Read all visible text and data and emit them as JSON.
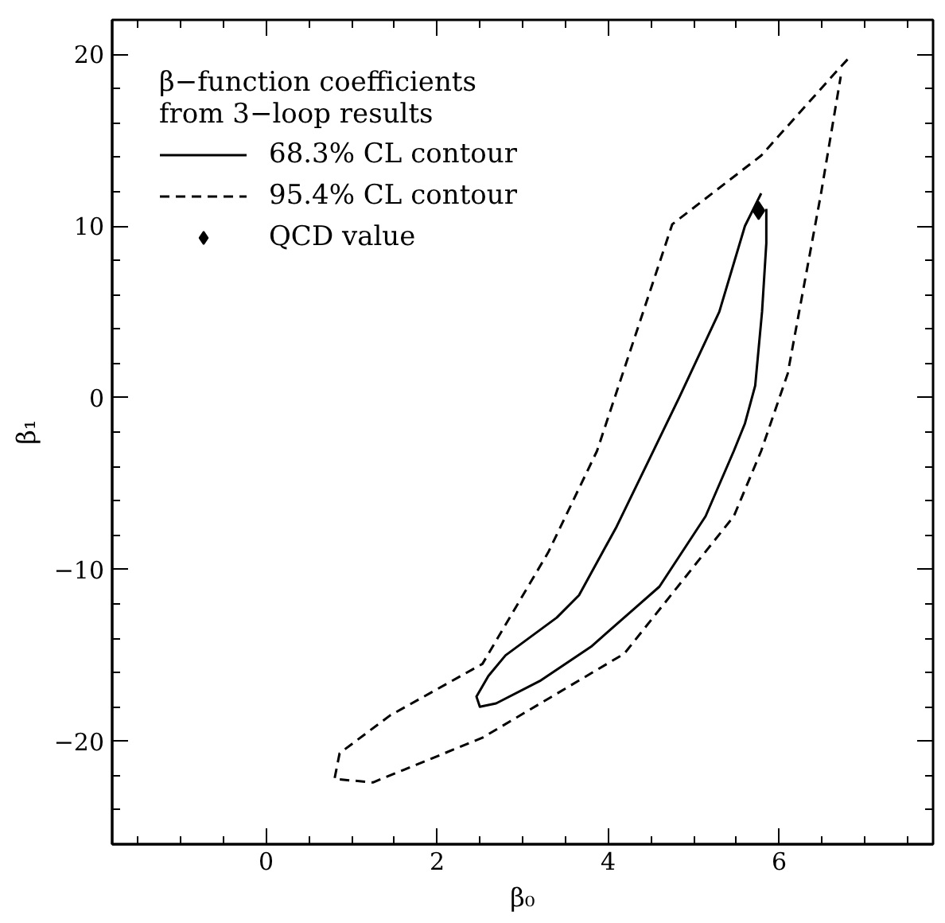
{
  "chart_data": {
    "type": "line",
    "xlabel": "β₀",
    "ylabel": "β₁",
    "legend_title": "β−function coefficients\nfrom 3−loop results",
    "legend": "top left",
    "grid": false,
    "xlim": [
      -1.8,
      7.8
    ],
    "ylim": [
      -26,
      22
    ],
    "xticks": [
      0,
      2,
      4,
      6
    ],
    "yticks": [
      -20,
      -10,
      0,
      10,
      20
    ],
    "series": [
      {
        "name": "68.3% CL contour",
        "type": "line",
        "line_style": "solid",
        "color": "#000000",
        "x": [
          5.79,
          5.6,
          5.3,
          4.83,
          4.5,
          4.1,
          3.66,
          3.4,
          2.8,
          2.6,
          2.46,
          2.5,
          2.69,
          3.2,
          3.8,
          4.6,
          5.14,
          5.47,
          5.6,
          5.72,
          5.8,
          5.85,
          5.85
        ],
        "values": [
          11.9,
          10,
          5,
          0,
          -3.4,
          -7.5,
          -11.5,
          -12.8,
          -15,
          -16.2,
          -17.4,
          -18,
          -17.8,
          -16.5,
          -14.5,
          -11,
          -6.9,
          -3.1,
          -1.5,
          0.7,
          5,
          9,
          11
        ]
      },
      {
        "name": "95.4% CL contour",
        "type": "line",
        "line_style": "dashed",
        "color": "#000000",
        "x": [
          6.8,
          6.67,
          5.79,
          4.75,
          3.87,
          3.3,
          2.53,
          1.45,
          0.86,
          0.8,
          1.25,
          2.53,
          4.19,
          5.47,
          5.79,
          6.1,
          6.49,
          6.72
        ],
        "values": [
          19.7,
          19,
          14.1,
          10.1,
          -3.1,
          -9,
          -15.5,
          -18.5,
          -20.7,
          -22.2,
          -22.4,
          -19.8,
          -14.9,
          -6.9,
          -3.1,
          1.4,
          11.9,
          18.7
        ]
      },
      {
        "name": "QCD value",
        "type": "scatter",
        "marker": "diamond",
        "color": "#000000",
        "x": [
          5.76
        ],
        "values": [
          10.9
        ]
      }
    ]
  }
}
